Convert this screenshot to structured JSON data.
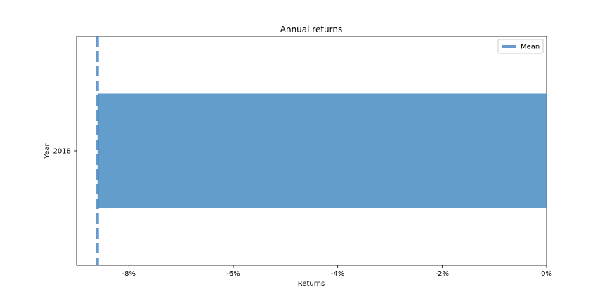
{
  "chart_data": {
    "type": "bar",
    "orientation": "horizontal",
    "title": "Annual returns",
    "xlabel": "Returns",
    "ylabel": "Year",
    "categories": [
      "2018"
    ],
    "values": [
      -8.6
    ],
    "value_unit": "%",
    "xlim": [
      -9.0,
      0.0
    ],
    "xticks": [
      -8,
      -6,
      -4,
      -2,
      0
    ],
    "xtick_labels": [
      "-8%",
      "-6%",
      "-4%",
      "-2%",
      "0%"
    ],
    "mean_line": {
      "value": -8.6,
      "label": "Mean",
      "style": "dashed",
      "color": "#4d88c4"
    },
    "bar_color": "#4c8fc4",
    "grid": false,
    "legend": {
      "position": "top-right",
      "entries": [
        "Mean"
      ]
    }
  }
}
